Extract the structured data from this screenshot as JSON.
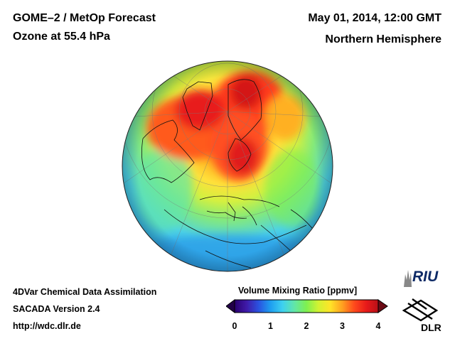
{
  "header": {
    "title_line1": "GOME–2 / MetOp Forecast",
    "title_line2": "Ozone at 55.4 hPa",
    "date": "May 01, 2014, 12:00 GMT",
    "region": "Northern Hemisphere"
  },
  "footer": {
    "line1": "4DVar Chemical Data Assimilation",
    "line2": "SACADA Version 2.4",
    "line3": "http://wdc.dlr.de"
  },
  "colorbar": {
    "title": "Volume Mixing Ratio [ppmv]",
    "min": 0,
    "max": 4,
    "ticks": [
      "0",
      "1",
      "2",
      "3",
      "4"
    ],
    "colors": [
      "#2a0070",
      "#3f1aa8",
      "#2a52e0",
      "#1e9ef0",
      "#3ed0f0",
      "#62e6a8",
      "#7ef050",
      "#d2f232",
      "#ffe428",
      "#ffa020",
      "#ff4a1c",
      "#e81a1a",
      "#b81018"
    ]
  },
  "map": {
    "projection": "orthographic, centred on the North Pole",
    "field": "ozone volume mixing ratio",
    "polar_max_ppmv": 3.6,
    "midlatitude_ppmv": 2.4,
    "tropics_ppmv": 1.2
  },
  "logos": {
    "riu": "RIU",
    "dlr": "DLR"
  }
}
